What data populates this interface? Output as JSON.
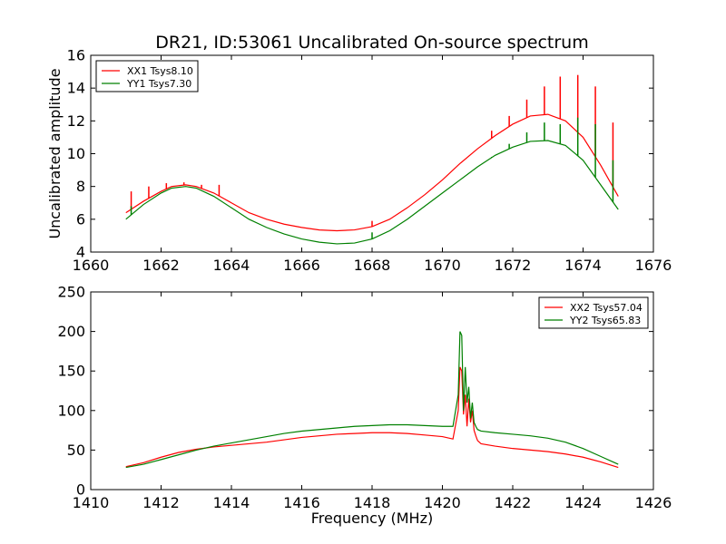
{
  "chart_data": [
    {
      "type": "line",
      "title": "DR21, ID:53061 Uncalibrated On-source spectrum",
      "xlabel": "",
      "ylabel": "Uncalibrated amplitude",
      "xlim": [
        1660,
        1676
      ],
      "ylim": [
        4,
        16
      ],
      "xticks": [
        1660,
        1662,
        1664,
        1666,
        1668,
        1670,
        1672,
        1674,
        1676
      ],
      "yticks": [
        4,
        6,
        8,
        10,
        12,
        14,
        16
      ],
      "grid": false,
      "legend_position": "top-left",
      "series": [
        {
          "name": "XX1 Tsys8.10",
          "color": "#ff0000",
          "x": [
            1661.0,
            1661.5,
            1662.0,
            1662.3,
            1662.7,
            1663.0,
            1663.5,
            1664.0,
            1664.5,
            1665.0,
            1665.5,
            1666.0,
            1666.5,
            1667.0,
            1667.5,
            1668.0,
            1668.5,
            1669.0,
            1669.5,
            1670.0,
            1670.5,
            1671.0,
            1671.5,
            1672.0,
            1672.5,
            1673.0,
            1673.5,
            1674.0,
            1674.5,
            1675.0
          ],
          "y": [
            6.4,
            7.1,
            7.7,
            8.0,
            8.1,
            8.0,
            7.6,
            7.0,
            6.4,
            6.0,
            5.7,
            5.5,
            5.35,
            5.3,
            5.35,
            5.55,
            6.0,
            6.7,
            7.5,
            8.4,
            9.4,
            10.3,
            11.1,
            11.8,
            12.3,
            12.4,
            12.0,
            11.0,
            9.3,
            7.4
          ],
          "spikes": [
            {
              "x": 1661.15,
              "y": 7.7
            },
            {
              "x": 1661.65,
              "y": 8.0
            },
            {
              "x": 1662.15,
              "y": 8.2
            },
            {
              "x": 1662.65,
              "y": 8.25
            },
            {
              "x": 1663.15,
              "y": 8.1
            },
            {
              "x": 1663.65,
              "y": 8.1
            },
            {
              "x": 1668.0,
              "y": 5.9
            },
            {
              "x": 1671.4,
              "y": 11.4
            },
            {
              "x": 1671.9,
              "y": 12.3
            },
            {
              "x": 1672.4,
              "y": 13.3
            },
            {
              "x": 1672.9,
              "y": 14.1
            },
            {
              "x": 1673.35,
              "y": 14.7
            },
            {
              "x": 1673.85,
              "y": 14.8
            },
            {
              "x": 1674.35,
              "y": 14.1
            },
            {
              "x": 1674.85,
              "y": 11.9
            }
          ]
        },
        {
          "name": "YY1 Tsys7.30",
          "color": "#008000",
          "x": [
            1661.0,
            1661.5,
            1662.0,
            1662.3,
            1662.7,
            1663.0,
            1663.5,
            1664.0,
            1664.5,
            1665.0,
            1665.5,
            1666.0,
            1666.5,
            1667.0,
            1667.5,
            1668.0,
            1668.5,
            1669.0,
            1669.5,
            1670.0,
            1670.5,
            1671.0,
            1671.5,
            1672.0,
            1672.5,
            1673.0,
            1673.5,
            1674.0,
            1674.5,
            1675.0
          ],
          "y": [
            6.0,
            6.9,
            7.6,
            7.9,
            8.0,
            7.9,
            7.4,
            6.7,
            6.0,
            5.5,
            5.1,
            4.8,
            4.6,
            4.5,
            4.55,
            4.8,
            5.3,
            6.0,
            6.8,
            7.6,
            8.4,
            9.2,
            9.9,
            10.4,
            10.75,
            10.8,
            10.5,
            9.6,
            8.1,
            6.6
          ],
          "spikes": [
            {
              "x": 1661.15,
              "y": 6.8
            },
            {
              "x": 1668.0,
              "y": 5.2
            },
            {
              "x": 1671.4,
              "y": 9.8
            },
            {
              "x": 1671.9,
              "y": 10.6
            },
            {
              "x": 1672.4,
              "y": 11.3
            },
            {
              "x": 1672.9,
              "y": 11.9
            },
            {
              "x": 1673.35,
              "y": 11.8
            },
            {
              "x": 1673.85,
              "y": 12.2
            },
            {
              "x": 1674.35,
              "y": 11.8
            },
            {
              "x": 1674.85,
              "y": 9.6
            }
          ]
        }
      ]
    },
    {
      "type": "line",
      "title": "",
      "xlabel": "Frequency (MHz)",
      "ylabel": "",
      "xlim": [
        1410,
        1426
      ],
      "ylim": [
        0,
        250
      ],
      "xticks": [
        1410,
        1412,
        1414,
        1416,
        1418,
        1420,
        1422,
        1424,
        1426
      ],
      "yticks": [
        0,
        50,
        100,
        150,
        200,
        250
      ],
      "grid": false,
      "legend_position": "top-right",
      "series": [
        {
          "name": "XX2 Tsys57.04",
          "color": "#ff0000",
          "x": [
            1411.0,
            1411.5,
            1412.0,
            1412.5,
            1413.0,
            1413.5,
            1414.0,
            1414.5,
            1415.0,
            1415.5,
            1416.0,
            1416.5,
            1417.0,
            1417.5,
            1418.0,
            1418.5,
            1419.0,
            1419.5,
            1420.0,
            1420.3,
            1420.45,
            1420.5,
            1420.55,
            1420.6,
            1420.65,
            1420.7,
            1420.75,
            1420.8,
            1420.85,
            1420.9,
            1420.95,
            1421.0,
            1421.1,
            1421.5,
            1422.0,
            1422.5,
            1423.0,
            1423.5,
            1424.0,
            1424.5,
            1425.0
          ],
          "y": [
            29,
            34,
            41,
            47,
            51,
            54,
            56,
            58,
            60,
            63,
            66,
            68,
            70,
            71,
            72,
            72,
            71,
            69,
            67,
            64,
            100,
            155,
            150,
            95,
            120,
            80,
            115,
            85,
            100,
            75,
            68,
            62,
            58,
            55,
            52,
            50,
            48,
            45,
            41,
            35,
            28
          ],
          "spikes": []
        },
        {
          "name": "YY2 Tsys65.83",
          "color": "#008000",
          "x": [
            1411.0,
            1411.5,
            1412.0,
            1412.5,
            1413.0,
            1413.5,
            1414.0,
            1414.5,
            1415.0,
            1415.5,
            1416.0,
            1416.5,
            1417.0,
            1417.5,
            1418.0,
            1418.5,
            1419.0,
            1419.5,
            1420.0,
            1420.3,
            1420.45,
            1420.5,
            1420.55,
            1420.6,
            1420.65,
            1420.7,
            1420.75,
            1420.8,
            1420.85,
            1420.9,
            1420.95,
            1421.0,
            1421.1,
            1421.5,
            1422.0,
            1422.5,
            1423.0,
            1423.5,
            1424.0,
            1424.5,
            1425.0
          ],
          "y": [
            28,
            32,
            38,
            44,
            50,
            55,
            59,
            63,
            67,
            71,
            74,
            76,
            78,
            80,
            81,
            82,
            82,
            81,
            80,
            80,
            120,
            200,
            195,
            100,
            155,
            110,
            130,
            90,
            110,
            85,
            80,
            76,
            74,
            72,
            70,
            68,
            65,
            60,
            52,
            42,
            32
          ],
          "spikes": []
        }
      ]
    }
  ]
}
